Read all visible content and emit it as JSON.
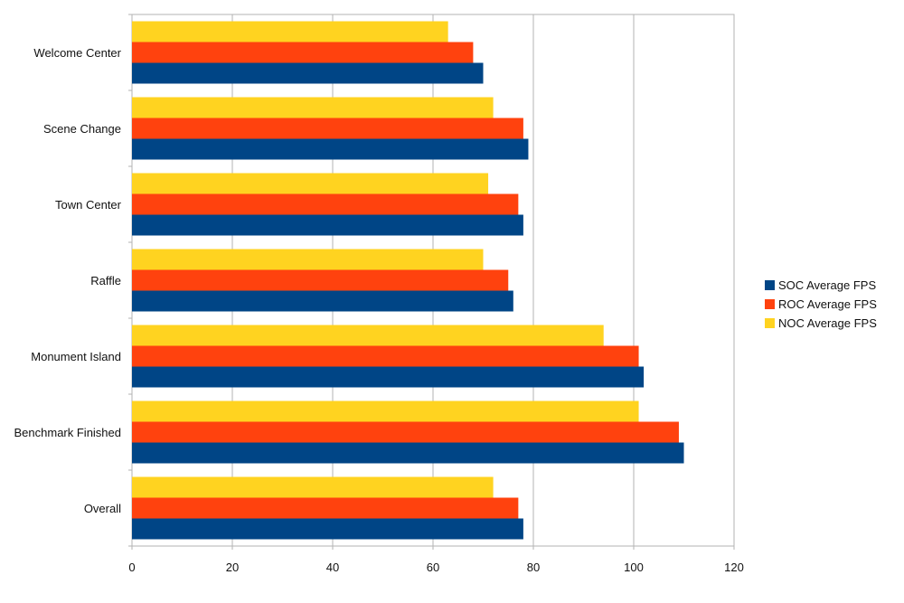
{
  "chart_data": {
    "type": "bar",
    "orientation": "horizontal",
    "title": "",
    "xlabel": "",
    "ylabel": "",
    "categories": [
      "Welcome Center",
      "Scene Change",
      "Town Center",
      "Raffle",
      "Monument Island",
      "Benchmark Finished",
      "Overall"
    ],
    "series": [
      {
        "name": "SOC  Average FPS",
        "color": "#004586",
        "values": [
          70,
          79,
          78,
          76,
          102,
          110,
          78
        ]
      },
      {
        "name": "ROC  Average FPS",
        "color": "#ff420e",
        "values": [
          68,
          78,
          77,
          75,
          101,
          109,
          77
        ]
      },
      {
        "name": "NOC  Average FPS",
        "color": "#ffd320",
        "values": [
          63,
          72,
          71,
          70,
          94,
          101,
          72
        ]
      }
    ],
    "xlim": [
      0,
      120
    ],
    "x_ticks": [
      "0",
      "20",
      "40",
      "60",
      "80",
      "100",
      "120"
    ],
    "grid": true,
    "legend_position": "right"
  }
}
